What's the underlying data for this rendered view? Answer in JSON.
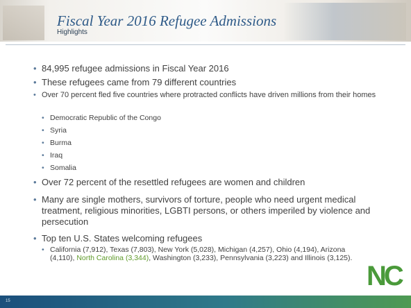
{
  "header": {
    "title": "Fiscal Year 2016 Refugee Admissions",
    "subtitle": "Highlights"
  },
  "bullets": [
    {
      "text": "84,995 refugee admissions in Fiscal Year 2016"
    },
    {
      "text": "These refugees came from 79 different countries"
    },
    {
      "text": "Over 70 percent fled five countries where protracted conflicts have driven millions from their homes",
      "items": [
        "Democratic Republic of the Congo",
        "Syria",
        "Burma",
        "Iraq",
        "Somalia"
      ]
    },
    {
      "text": "Over 72 percent of the resettled refugees are women and children"
    },
    {
      "text": "Many are single mothers, survivors of torture, people who need urgent medical treatment, religious minorities, LGBTI persons, or others imperiled by violence and persecution"
    },
    {
      "text": "Top ten U.S. States welcoming refugees",
      "states": {
        "before": "California (7,912), Texas (7,803), New York (5,028), Michigan (4,257), Ohio (4,194), Arizona (4,110), ",
        "highlight": "North Carolina (3,344)",
        "after": ", Washington (3,233), Pennsylvania (3,223) and Illinois (3,125)."
      }
    }
  ],
  "logo": "NC",
  "footer": {
    "page": "15"
  }
}
